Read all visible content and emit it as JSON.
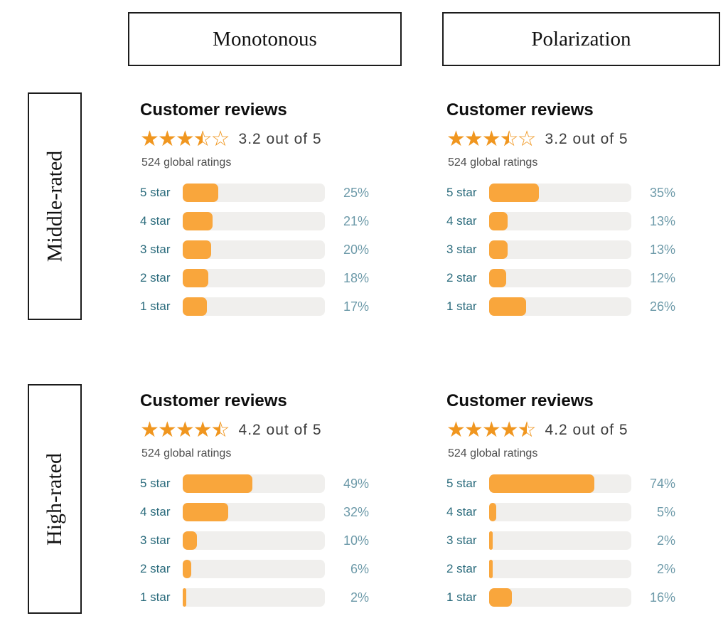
{
  "column_headers": [
    {
      "label": "Monotonous"
    },
    {
      "label": "Polarization"
    }
  ],
  "row_headers": [
    {
      "label": "Middle-rated"
    },
    {
      "label": "High-rated"
    }
  ],
  "panels": [
    {
      "row": "Middle-rated",
      "column": "Monotonous",
      "title": "Customer reviews",
      "stars_display": 3.5,
      "rating_text": "3.2 out of 5",
      "global_ratings": "524 global ratings",
      "bars": [
        {
          "label": "5 star",
          "value": 25,
          "percent": "25%"
        },
        {
          "label": "4 star",
          "value": 21,
          "percent": "21%"
        },
        {
          "label": "3 star",
          "value": 20,
          "percent": "20%"
        },
        {
          "label": "2 star",
          "value": 18,
          "percent": "18%"
        },
        {
          "label": "1 star",
          "value": 17,
          "percent": "17%"
        }
      ]
    },
    {
      "row": "Middle-rated",
      "column": "Polarization",
      "title": "Customer reviews",
      "stars_display": 3.5,
      "rating_text": "3.2 out of 5",
      "global_ratings": "524 global ratings",
      "bars": [
        {
          "label": "5 star",
          "value": 35,
          "percent": "35%"
        },
        {
          "label": "4 star",
          "value": 13,
          "percent": "13%"
        },
        {
          "label": "3 star",
          "value": 13,
          "percent": "13%"
        },
        {
          "label": "2 star",
          "value": 12,
          "percent": "12%"
        },
        {
          "label": "1 star",
          "value": 26,
          "percent": "26%"
        }
      ]
    },
    {
      "row": "High-rated",
      "column": "Monotonous",
      "title": "Customer reviews",
      "stars_display": 4.5,
      "rating_text": "4.2 out of 5",
      "global_ratings": "524 global ratings",
      "bars": [
        {
          "label": "5 star",
          "value": 49,
          "percent": "49%"
        },
        {
          "label": "4 star",
          "value": 32,
          "percent": "32%"
        },
        {
          "label": "3 star",
          "value": 10,
          "percent": "10%"
        },
        {
          "label": "2 star",
          "value": 6,
          "percent": "6%"
        },
        {
          "label": "1 star",
          "value": 2,
          "percent": "2%"
        }
      ]
    },
    {
      "row": "High-rated",
      "column": "Polarization",
      "title": "Customer reviews",
      "stars_display": 4.5,
      "rating_text": "4.2 out of 5",
      "global_ratings": "524 global ratings",
      "bars": [
        {
          "label": "5 star",
          "value": 74,
          "percent": "74%"
        },
        {
          "label": "4 star",
          "value": 5,
          "percent": "5%"
        },
        {
          "label": "3 star",
          "value": 2,
          "percent": "2%"
        },
        {
          "label": "2 star",
          "value": 2,
          "percent": "2%"
        },
        {
          "label": "1 star",
          "value": 16,
          "percent": "16%"
        }
      ]
    }
  ],
  "colors": {
    "star_orange": "#f0961f",
    "bar_orange": "#f9a63c",
    "bar_track": "#f0efed",
    "star_label_teal": "#2a6b7c",
    "percent_teal": "#6d9aa9",
    "heading_black": "#0e0e0e",
    "rating_gray": "#3d3d3d"
  },
  "chart_data": [
    {
      "type": "bar",
      "title": "Customer reviews (Middle-rated, Monotonous)",
      "subtitle": "3.2 out of 5 — 524 global ratings",
      "categories": [
        "5 star",
        "4 star",
        "3 star",
        "2 star",
        "1 star"
      ],
      "values": [
        25,
        21,
        20,
        18,
        17
      ],
      "xlabel": "",
      "ylabel": "",
      "unit": "%",
      "xlim": [
        0,
        100
      ],
      "orientation": "horizontal",
      "grid": false,
      "legend": "none"
    },
    {
      "type": "bar",
      "title": "Customer reviews (Middle-rated, Polarization)",
      "subtitle": "3.2 out of 5 — 524 global ratings",
      "categories": [
        "5 star",
        "4 star",
        "3 star",
        "2 star",
        "1 star"
      ],
      "values": [
        35,
        13,
        13,
        12,
        26
      ],
      "xlabel": "",
      "ylabel": "",
      "unit": "%",
      "xlim": [
        0,
        100
      ],
      "orientation": "horizontal",
      "grid": false,
      "legend": "none"
    },
    {
      "type": "bar",
      "title": "Customer reviews (High-rated, Monotonous)",
      "subtitle": "4.2 out of 5 — 524 global ratings",
      "categories": [
        "5 star",
        "4 star",
        "3 star",
        "2 star",
        "1 star"
      ],
      "values": [
        49,
        32,
        10,
        6,
        2
      ],
      "xlabel": "",
      "ylabel": "",
      "unit": "%",
      "xlim": [
        0,
        100
      ],
      "orientation": "horizontal",
      "grid": false,
      "legend": "none"
    },
    {
      "type": "bar",
      "title": "Customer reviews (High-rated, Polarization)",
      "subtitle": "4.2 out of 5 — 524 global ratings",
      "categories": [
        "5 star",
        "4 star",
        "3 star",
        "2 star",
        "1 star"
      ],
      "values": [
        74,
        5,
        2,
        2,
        16
      ],
      "xlabel": "",
      "ylabel": "",
      "unit": "%",
      "xlim": [
        0,
        100
      ],
      "orientation": "horizontal",
      "grid": false,
      "legend": "none"
    }
  ]
}
